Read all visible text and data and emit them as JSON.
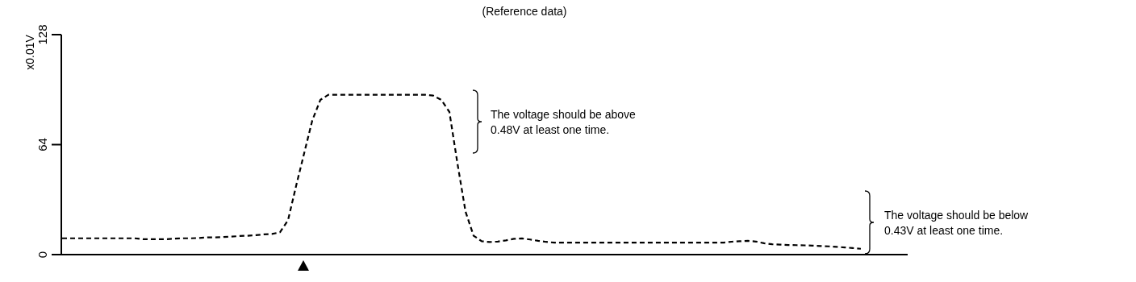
{
  "chart_data": {
    "type": "line",
    "title": "(Reference data)",
    "ylabel": "x0.01V",
    "categories": [
      null,
      null,
      null,
      null,
      null,
      null,
      null,
      null,
      null,
      null,
      null,
      null,
      null,
      null,
      null,
      null,
      null,
      null,
      null,
      null,
      null,
      null,
      null,
      null,
      null,
      null,
      null,
      null,
      null,
      null,
      null,
      null,
      null,
      null,
      null,
      null,
      null,
      null,
      null,
      null,
      null,
      null,
      null,
      null,
      null,
      null,
      null,
      null,
      null,
      null,
      null,
      null,
      null,
      null,
      null,
      null,
      null,
      null,
      null,
      null,
      null,
      null,
      null,
      null,
      null,
      null,
      null,
      null,
      null,
      null,
      null,
      null,
      null,
      null,
      null,
      null,
      null,
      null,
      null,
      null,
      null,
      null,
      null,
      null,
      null,
      null,
      null,
      null,
      null,
      null,
      null,
      null,
      null,
      null,
      null,
      null,
      null,
      null,
      null,
      null
    ],
    "series": [
      {
        "color": "#000000",
        "values": [
          9.5,
          9.5,
          9.5,
          9.5,
          9.5,
          9.5,
          9.5,
          9.5,
          9.5,
          9.5,
          9,
          9,
          9,
          9,
          9.3,
          9.5,
          9.5,
          9.7,
          10,
          10,
          10.3,
          10.5,
          10.8,
          11,
          11.3,
          11.8,
          12,
          13,
          20,
          40,
          59,
          78,
          90,
          93,
          93,
          93,
          93,
          93,
          93,
          93,
          93,
          93,
          93,
          93,
          93,
          93,
          92.5,
          90,
          83,
          53,
          25,
          11,
          7.8,
          7.3,
          7.6,
          8.3,
          9.2,
          9.4,
          8.8,
          8,
          7.4,
          7,
          7,
          7,
          7,
          7,
          7,
          7,
          7,
          7,
          7,
          7,
          7,
          7,
          7,
          7,
          7,
          7,
          7,
          7,
          7,
          7,
          7,
          7.5,
          7.8,
          8,
          7.6,
          6.6,
          6,
          5.8,
          5.6,
          5.5,
          5.4,
          5.2,
          5,
          4.8,
          4.5,
          4.2,
          3.8,
          3.4
        ]
      }
    ],
    "ylim": [
      0,
      128
    ],
    "yticks": [
      0,
      64,
      128
    ],
    "grid": false,
    "marker": "none",
    "line_style": "dashed",
    "annotations": [
      "The voltage should be above 0.48V at least one time.",
      "The voltage should be below 0.43V at least one time."
    ]
  }
}
